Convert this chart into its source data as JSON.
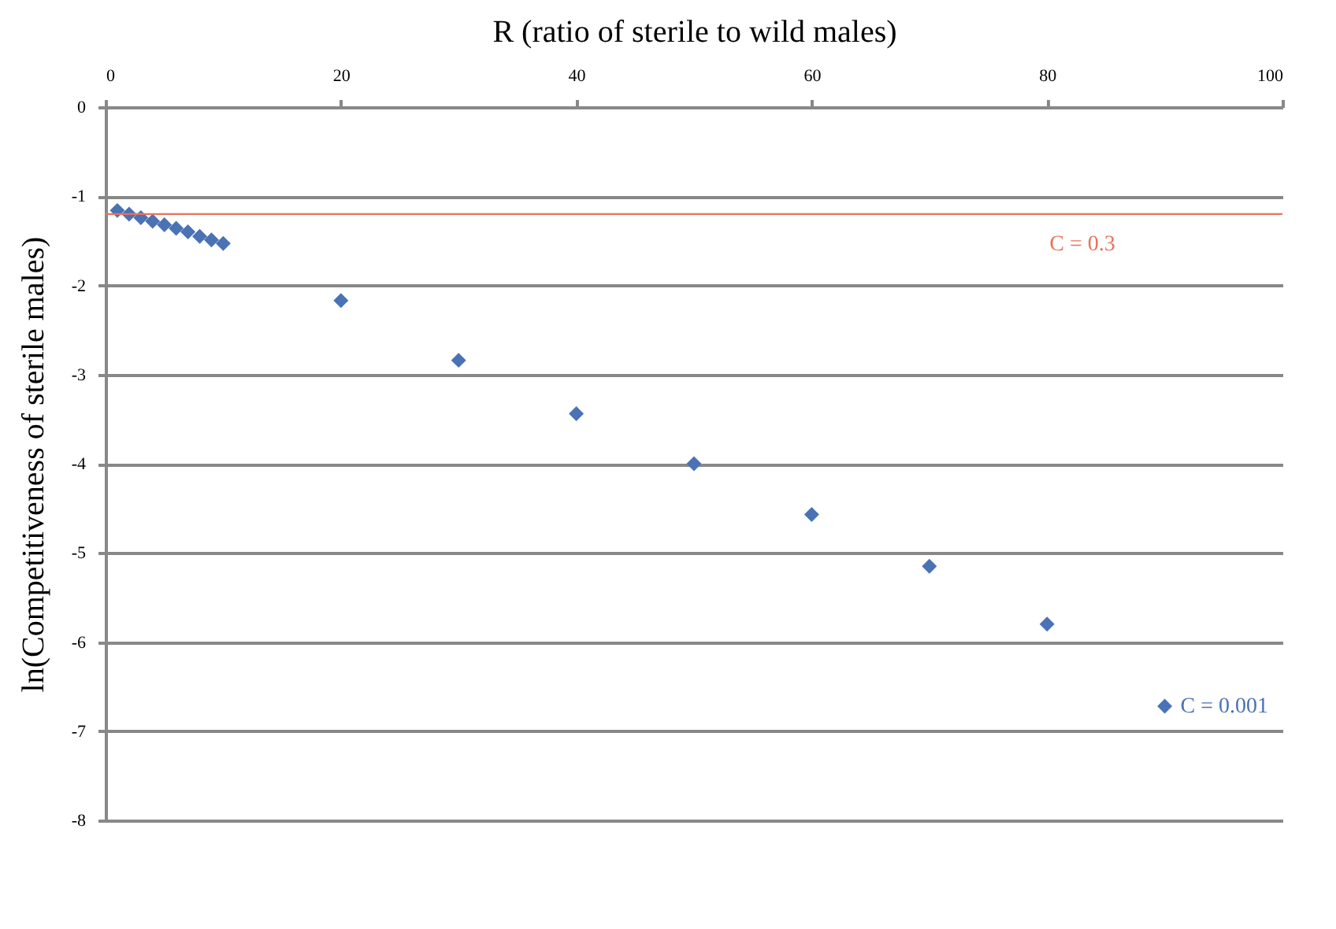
{
  "chart_data": {
    "type": "scatter",
    "xlabel": "R (ratio of sterile to wild males)",
    "ylabel": "ln(Competitiveness of sterile males)",
    "x": [
      1,
      2,
      3,
      4,
      5,
      6,
      7,
      8,
      9,
      10,
      20,
      30,
      40,
      50,
      60,
      70,
      80,
      90
    ],
    "series": [
      {
        "name": "C = 0.001",
        "color": "#4a72b5",
        "values": [
          -1.16,
          -1.2,
          -1.24,
          -1.28,
          -1.32,
          -1.36,
          -1.4,
          -1.45,
          -1.49,
          -1.53,
          -2.17,
          -2.84,
          -3.44,
          -4.0,
          -4.57,
          -5.15,
          -5.8,
          -6.72
        ]
      }
    ],
    "marker": "diamond",
    "grid": "y",
    "xlim": [
      0,
      100
    ],
    "xticks": [
      0,
      20,
      40,
      60,
      80,
      100
    ],
    "ylim": [
      -8,
      0
    ],
    "yticks": [
      -8,
      -7,
      -6,
      -5,
      -4,
      -3,
      -2,
      -1,
      0
    ],
    "ref_lines": [
      {
        "axis": "y",
        "value": -1.2,
        "color": "#e8735a"
      }
    ],
    "annotations": [
      {
        "text": "C = 0.3",
        "x": 83,
        "y": -1.2
      }
    ]
  }
}
